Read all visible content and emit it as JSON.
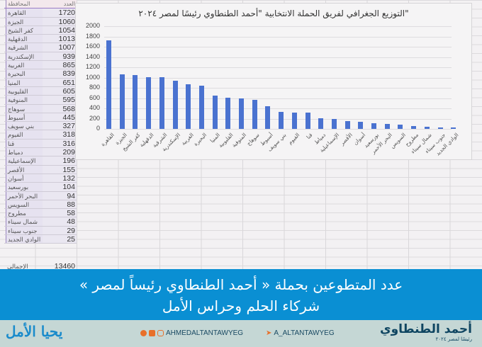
{
  "table": {
    "header": {
      "name": "المحافظة",
      "value": "العدد"
    },
    "rows": [
      {
        "name": "القاهرة",
        "value": "1720"
      },
      {
        "name": "الجيزة",
        "value": "1060"
      },
      {
        "name": "كفر الشيخ",
        "value": "1054"
      },
      {
        "name": "الدقهلية",
        "value": "1013"
      },
      {
        "name": "الشرقية",
        "value": "1007"
      },
      {
        "name": "الإسكندرية",
        "value": "939"
      },
      {
        "name": "الغربية",
        "value": "865"
      },
      {
        "name": "البحيرة",
        "value": "839"
      },
      {
        "name": "المنيا",
        "value": "651"
      },
      {
        "name": "القليوبية",
        "value": "605"
      },
      {
        "name": "المنوفية",
        "value": "595"
      },
      {
        "name": "سوهاج",
        "value": "568"
      },
      {
        "name": "أسيوط",
        "value": "445"
      },
      {
        "name": "بني سويف",
        "value": "327"
      },
      {
        "name": "الفيوم",
        "value": "318"
      },
      {
        "name": "قنا",
        "value": "316"
      },
      {
        "name": "دمياط",
        "value": "209"
      },
      {
        "name": "الإسماعيلية",
        "value": "196"
      },
      {
        "name": "الأقصر",
        "value": "155"
      },
      {
        "name": "أسوان",
        "value": "132"
      },
      {
        "name": "بورسعيد",
        "value": "104"
      },
      {
        "name": "البحر الأحمر",
        "value": "94"
      },
      {
        "name": "السويس",
        "value": "88"
      },
      {
        "name": "مطروح",
        "value": "58"
      },
      {
        "name": "شمال سيناء",
        "value": "48"
      },
      {
        "name": "جنوب سيناء",
        "value": "29"
      },
      {
        "name": "الوادي الجديد",
        "value": "25"
      }
    ],
    "total": {
      "name": "الإجمالي",
      "value": "13460"
    }
  },
  "chart_data": {
    "type": "bar",
    "title": "\"التوزيع الجغرافي لفريق الحملة الانتخابية \"أحمد الطنطاوي رئيسًا لمصر ٢٠٢٤",
    "xlabel": "",
    "ylabel": "",
    "ylim": [
      0,
      2000
    ],
    "yticks": [
      0,
      200,
      400,
      600,
      800,
      1000,
      1200,
      1400,
      1600,
      1800,
      2000
    ],
    "grid": true,
    "legend": "none",
    "bar_color": "#4a72d0",
    "categories": [
      "القاهرة",
      "الجيزة",
      "كفر الشيخ",
      "الدقهلية",
      "الشرقية",
      "الإسكندرية",
      "الغربية",
      "البحيرة",
      "المنيا",
      "القليوبية",
      "المنوفية",
      "سوهاج",
      "أسيوط",
      "بني سويف",
      "الفيوم",
      "قنا",
      "دمياط",
      "الإسماعيلية",
      "الأقصر",
      "أسوان",
      "بورسعيد",
      "البحر الأحمر",
      "السويس",
      "مطروح",
      "شمال سيناء",
      "جنوب سيناء",
      "الوادي الجديد"
    ],
    "values": [
      1720,
      1060,
      1054,
      1013,
      1007,
      939,
      865,
      839,
      651,
      605,
      595,
      568,
      445,
      327,
      318,
      316,
      209,
      196,
      155,
      132,
      104,
      94,
      88,
      58,
      48,
      29,
      25
    ]
  },
  "banner": {
    "line1": "عدد المتطوعين بحملة « أحمد الطنطاوي رئيساً لمصر »",
    "line2": "شركاء الحلم وحراس الأمل",
    "color": "#0a8fd3"
  },
  "footer": {
    "logo_left": "يحيا الأمل",
    "social_handle": "AHMEDALTANTAWYEG",
    "twitter_handle": "A_ALTANTAWYEG",
    "brand_name": "أحمد الطنطاوي",
    "brand_sub": "رئيسًا لمصر ٢٠٢٤",
    "icons": [
      "facebook-icon",
      "tiktok-icon",
      "instagram-icon",
      "twitter-icon"
    ]
  }
}
